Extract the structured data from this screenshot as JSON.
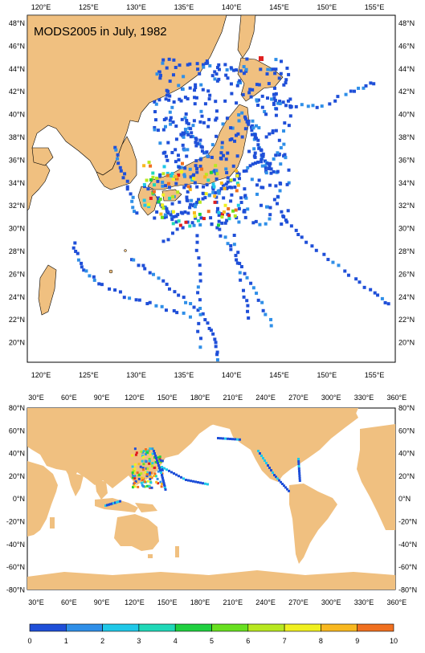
{
  "maps": [
    {
      "title": "MODS2005 in July, 1982",
      "x_ticks": [
        "120°E",
        "125°E",
        "130°E",
        "135°E",
        "140°E",
        "145°E",
        "150°E",
        "155°E"
      ],
      "y_ticks": [
        "48°N",
        "46°N",
        "44°N",
        "42°N",
        "40°N",
        "38°N",
        "36°N",
        "34°N",
        "32°N",
        "30°N",
        "28°N",
        "26°N",
        "24°N",
        "22°N",
        "20°N"
      ]
    },
    {
      "title": "",
      "x_ticks": [
        "30°E",
        "60°E",
        "90°E",
        "120°E",
        "150°E",
        "180°E",
        "210°E",
        "240°E",
        "270°E",
        "300°E",
        "330°E",
        "360°E"
      ],
      "y_ticks": [
        "80°N",
        "60°N",
        "40°N",
        "20°N",
        "0°N",
        "-20°N",
        "-40°N",
        "-60°N",
        "-80°N"
      ]
    }
  ],
  "colorbar": {
    "labels": [
      "0",
      "1",
      "2",
      "3",
      "4",
      "5",
      "6",
      "7",
      "8",
      "9",
      "10"
    ],
    "colors": [
      "#1f4fd8",
      "#2f8fe8",
      "#20c8e8",
      "#20d8b8",
      "#20d040",
      "#68e020",
      "#b8e820",
      "#f0f020",
      "#f8b820",
      "#f07020",
      "#e02020"
    ]
  },
  "colors": {
    "land": "#f0c080",
    "ocean": "#ffffff",
    "obs_low": "#1f5fe0"
  }
}
